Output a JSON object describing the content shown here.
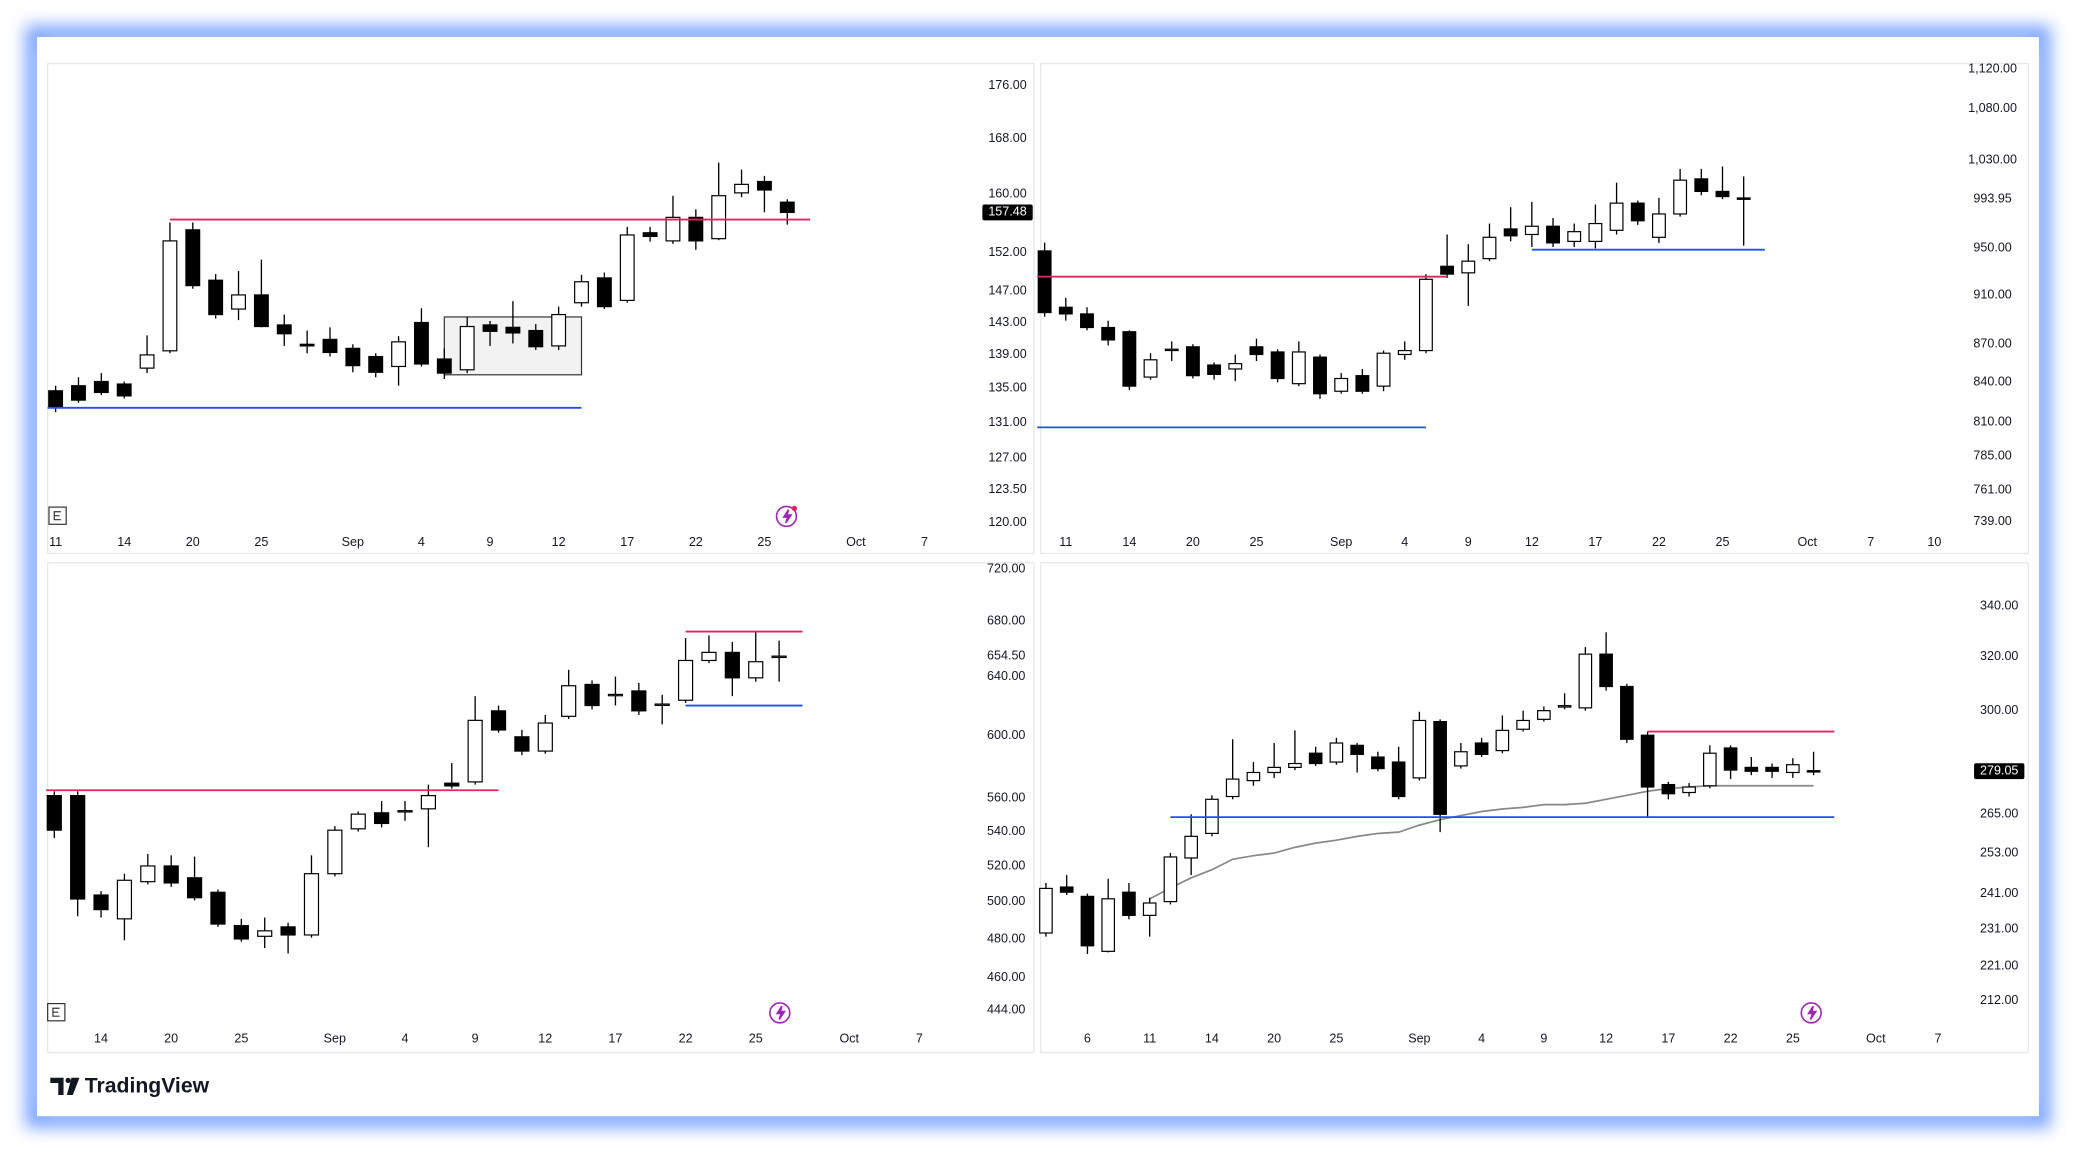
{
  "brand": "TradingView",
  "chart_data": [
    {
      "type": "candlestick",
      "log": true,
      "up_color": "#ffffff",
      "down_color": "#000000",
      "ylim": [
        119,
        179
      ],
      "yticks": [
        {
          "value": 176,
          "label": "176.00"
        },
        {
          "value": 168,
          "label": "168.00"
        },
        {
          "value": 160,
          "label": "160.00"
        },
        {
          "value": 152,
          "label": "152.00"
        },
        {
          "value": 147,
          "label": "147.00"
        },
        {
          "value": 143,
          "label": "143.00"
        },
        {
          "value": 139,
          "label": "139.00"
        },
        {
          "value": 135,
          "label": "135.00"
        },
        {
          "value": 131,
          "label": "131.00"
        },
        {
          "value": 127,
          "label": "127.00"
        },
        {
          "value": 123.5,
          "label": "123.50"
        },
        {
          "value": 120,
          "label": "120.00"
        }
      ],
      "categories": [
        "11",
        null,
        null,
        "14",
        null,
        null,
        "20",
        null,
        null,
        "25",
        null,
        null,
        null,
        "Sep",
        null,
        null,
        "4",
        null,
        null,
        "9",
        null,
        null,
        "12",
        null,
        null,
        "17",
        null,
        null,
        "22",
        null,
        null,
        "25",
        null,
        null,
        null,
        "Oct",
        null,
        null,
        "7"
      ],
      "open": [
        134.7,
        135.3,
        135.8,
        135.5,
        137.4,
        139.5,
        155.1,
        148.4,
        144.7,
        146.5,
        142.7,
        140.3,
        140.9,
        139.8,
        138.8,
        137.6,
        143.0,
        138.5,
        137.2,
        142.7,
        142.4,
        142.0,
        140.1,
        145.5,
        148.7,
        145.8,
        154.7,
        153.6,
        156.8,
        153.9,
        160.2,
        161.8,
        158.9,
        null,
        null,
        null,
        null,
        null,
        null
      ],
      "high": [
        135.3,
        136.3,
        136.8,
        135.8,
        141.4,
        156.1,
        156.1,
        149.2,
        149.6,
        151.1,
        144.0,
        142.0,
        142.4,
        140.3,
        139.2,
        141.3,
        144.8,
        139.8,
        143.7,
        143.2,
        145.7,
        142.8,
        145.0,
        149.1,
        149.4,
        155.5,
        155.5,
        159.8,
        157.9,
        164.5,
        163.5,
        162.6,
        159.3,
        null,
        null,
        null,
        null,
        null,
        null
      ],
      "low": [
        132.2,
        133.3,
        134.2,
        133.8,
        136.8,
        139.2,
        147.3,
        143.5,
        143.3,
        142.4,
        140.1,
        139.2,
        138.8,
        136.9,
        136.3,
        135.3,
        137.6,
        136.1,
        136.8,
        140.1,
        140.4,
        139.6,
        139.6,
        145.0,
        144.7,
        145.5,
        153.5,
        153.2,
        152.4,
        153.7,
        159.6,
        157.5,
        155.8,
        null,
        null,
        null,
        null,
        null,
        null
      ],
      "close": [
        132.8,
        133.6,
        134.5,
        134.1,
        139.0,
        153.6,
        147.7,
        144.0,
        146.5,
        142.5,
        141.6,
        140.1,
        139.3,
        137.7,
        136.9,
        140.6,
        137.9,
        136.8,
        142.5,
        141.9,
        141.7,
        140.0,
        144.0,
        148.2,
        145.0,
        154.4,
        154.2,
        156.8,
        153.6,
        159.8,
        161.4,
        160.6,
        157.48,
        null,
        null,
        null,
        null,
        null,
        null
      ],
      "last_price": {
        "value": 157.48,
        "label": "157.48",
        "badge": true
      },
      "levels": [
        {
          "value": 156.5,
          "color": "#e0245e",
          "from": 5,
          "to": 33
        },
        {
          "value": 132.7,
          "color": "#1e53e5",
          "from": 0,
          "to": 23
        }
      ],
      "box": {
        "from": 17,
        "to": 23,
        "low": 136.6,
        "high": 143.7,
        "color": "#f2f2f2"
      }
    },
    {
      "type": "candlestick",
      "log": true,
      "up_color": "#ffffff",
      "down_color": "#000000",
      "ylim": [
        732,
        1123
      ],
      "yticks": [
        {
          "value": 1120,
          "label": "1,120.00"
        },
        {
          "value": 1080,
          "label": "1,080.00"
        },
        {
          "value": 1030,
          "label": "1,030.00"
        },
        {
          "value": 950,
          "label": "950.00"
        },
        {
          "value": 910,
          "label": "910.00"
        },
        {
          "value": 870,
          "label": "870.00"
        },
        {
          "value": 840,
          "label": "840.00"
        },
        {
          "value": 810,
          "label": "810.00"
        },
        {
          "value": 785,
          "label": "785.00"
        },
        {
          "value": 761,
          "label": "761.00"
        },
        {
          "value": 739,
          "label": "739.00"
        }
      ],
      "categories": [
        null,
        "11",
        null,
        null,
        "14",
        null,
        null,
        "20",
        null,
        null,
        "25",
        null,
        null,
        null,
        "Sep",
        null,
        null,
        "4",
        null,
        null,
        "9",
        null,
        null,
        "12",
        null,
        null,
        "17",
        null,
        null,
        "22",
        null,
        null,
        "25",
        null,
        null,
        null,
        "Oct",
        null,
        null,
        "7",
        null,
        null,
        "10"
      ],
      "open": [
        947.8,
        900,
        894.5,
        883.4,
        880,
        844.1,
        865,
        867.9,
        853.5,
        850.4,
        867.9,
        863.8,
        839,
        859.7,
        833.2,
        845.2,
        837.1,
        861.8,
        864.9,
        934.5,
        928.9,
        941.1,
        967.1,
        962.2,
        969.5,
        956.1,
        956.1,
        965.9,
        990.3,
        959.7,
        980.5,
        1012.6,
        1001,
        995,
        null,
        null,
        null,
        null,
        null,
        null,
        null,
        null,
        null
      ],
      "high": [
        955,
        907.8,
        900,
        889,
        881.1,
        862.8,
        872.2,
        870,
        855.6,
        861.8,
        874.4,
        865.9,
        872.2,
        861.8,
        847.2,
        850.4,
        864.9,
        872.2,
        927.8,
        962.2,
        953.7,
        971.9,
        986.6,
        991.5,
        976.9,
        971.9,
        989.1,
        1009.1,
        992.7,
        995.1,
        1021.9,
        1021.9,
        1024.2,
        1014.9,
        null,
        null,
        null,
        null,
        null,
        null,
        null,
        null,
        null
      ],
      "low": [
        892.2,
        889,
        881.1,
        869,
        834.2,
        842.1,
        856.6,
        843,
        842.1,
        841,
        856.6,
        840,
        837.1,
        827.4,
        831.3,
        831.3,
        833.2,
        857.6,
        862.8,
        924.5,
        901.1,
        938.9,
        956.1,
        951.2,
        951.2,
        951.2,
        950,
        962.2,
        970.7,
        954.8,
        978.1,
        997.5,
        993.95,
        952.4,
        null,
        null,
        null,
        null,
        null,
        null,
        null,
        null,
        null
      ],
      "close": [
        895.6,
        894.5,
        883.4,
        873.4,
        837.1,
        857.6,
        866,
        845.2,
        846.2,
        854.6,
        861.8,
        843,
        863.8,
        831.3,
        843,
        833.2,
        862.8,
        864.9,
        923.4,
        927.8,
        938.9,
        959.7,
        961,
        969.5,
        954.8,
        964.7,
        971.9,
        990.3,
        974.4,
        980.5,
        1011.4,
        1001,
        996.3,
        993.95,
        null,
        null,
        null,
        null,
        null,
        null,
        null,
        null,
        null
      ],
      "last_price": {
        "value": 993.95,
        "label": "993.95",
        "badge": false
      },
      "levels": [
        {
          "value": 925.6,
          "color": "#e0245e",
          "from": 0,
          "to": 19
        },
        {
          "value": 806,
          "color": "#1e53e5",
          "from": 0,
          "to": 18
        },
        {
          "value": 948.9,
          "color": "#1e53e5",
          "from": 23,
          "to": 34
        }
      ]
    },
    {
      "type": "candlestick",
      "log": true,
      "up_color": "#ffffff",
      "down_color": "#000000",
      "ylim": [
        435,
        723
      ],
      "yticks": [
        {
          "value": 720,
          "label": "720.00"
        },
        {
          "value": 680,
          "label": "680.00"
        },
        {
          "value": 640,
          "label": "640.00"
        },
        {
          "value": 600,
          "label": "600.00"
        },
        {
          "value": 560,
          "label": "560.00"
        },
        {
          "value": 540,
          "label": "540.00"
        },
        {
          "value": 520,
          "label": "520.00"
        },
        {
          "value": 500,
          "label": "500.00"
        },
        {
          "value": 480,
          "label": "480.00"
        },
        {
          "value": 460,
          "label": "460.00"
        },
        {
          "value": 444,
          "label": "444.00"
        }
      ],
      "categories": [
        null,
        null,
        "14",
        null,
        null,
        "20",
        null,
        null,
        "25",
        null,
        null,
        null,
        "Sep",
        null,
        null,
        "4",
        null,
        null,
        "9",
        null,
        null,
        "12",
        null,
        null,
        "17",
        null,
        null,
        "22",
        null,
        null,
        "25",
        null,
        null,
        null,
        "Oct",
        null,
        null,
        "7"
      ],
      "open": [
        561.7,
        561.7,
        503.7,
        490.7,
        511.1,
        520,
        513.3,
        505.2,
        487.1,
        481.4,
        486.4,
        482.1,
        515.6,
        541.6,
        551.2,
        552,
        553.6,
        569.4,
        570.2,
        616.4,
        599.1,
        589.8,
        612.7,
        634.5,
        627,
        630,
        620.5,
        623.6,
        651.4,
        657.2,
        639.1,
        654,
        null,
        null,
        null,
        null,
        null,
        null
      ],
      "high": [
        564.3,
        564.3,
        505.9,
        515.6,
        526.9,
        526.1,
        525.4,
        506.7,
        490.7,
        491.4,
        488.6,
        526.1,
        543.2,
        552,
        558.4,
        558.4,
        568.5,
        582.1,
        626.4,
        620,
        603.6,
        613.6,
        644.8,
        637.3,
        640,
        635.5,
        627.3,
        667.6,
        669.5,
        664.8,
        672.4,
        665.7,
        null,
        null,
        null,
        null,
        null,
        null
      ],
      "low": [
        536.2,
        492.1,
        491.4,
        479.3,
        509.6,
        508.2,
        500.7,
        486.4,
        478.6,
        475.2,
        472.4,
        480.7,
        514.1,
        540,
        542.4,
        546.4,
        530.8,
        566,
        568.5,
        601.8,
        587.2,
        588.1,
        610.9,
        617.3,
        620,
        613.6,
        607.3,
        621.8,
        649.5,
        626.4,
        636.4,
        636.4,
        null,
        null,
        null,
        null,
        null,
        null
      ],
      "close": [
        540.8,
        501.5,
        495.7,
        511.9,
        520,
        510.4,
        502.2,
        487.9,
        480,
        484.3,
        482.1,
        515.6,
        540.8,
        550.4,
        544.8,
        552.5,
        561.7,
        567.7,
        610,
        603.6,
        589.8,
        608.2,
        633.6,
        620,
        627.6,
        616.4,
        621,
        651.4,
        657.2,
        639.1,
        650.5,
        654.5,
        null,
        null,
        null,
        null,
        null,
        null
      ],
      "last_price": {
        "value": 654.5,
        "label": "654.50",
        "badge": false
      },
      "levels": [
        {
          "value": 565,
          "color": "#e0245e",
          "from": 0,
          "to": 19
        },
        {
          "value": 672.4,
          "color": "#e0245e",
          "from": 27,
          "to": 32
        },
        {
          "value": 620,
          "color": "#1e53e5",
          "from": 27,
          "to": 32
        }
      ]
    },
    {
      "type": "candlestick",
      "log": true,
      "up_color": "#ffffff",
      "down_color": "#000000",
      "ylim": [
        205,
        357
      ],
      "yticks": [
        {
          "value": 340,
          "label": "340.00"
        },
        {
          "value": 320,
          "label": "320.00"
        },
        {
          "value": 300,
          "label": "300.00"
        },
        {
          "value": 265,
          "label": "265.00"
        },
        {
          "value": 253,
          "label": "253.00"
        },
        {
          "value": 241,
          "label": "241.00"
        },
        {
          "value": 231,
          "label": "231.00"
        },
        {
          "value": 221,
          "label": "221.00"
        },
        {
          "value": 212,
          "label": "212.00"
        }
      ],
      "categories": [
        null,
        null,
        "6",
        null,
        null,
        "11",
        null,
        null,
        "14",
        null,
        null,
        "20",
        null,
        null,
        "25",
        null,
        null,
        null,
        "Sep",
        null,
        null,
        "4",
        null,
        null,
        "9",
        null,
        null,
        "12",
        null,
        null,
        "17",
        null,
        null,
        "22",
        null,
        null,
        "25",
        null,
        null,
        null,
        "Oct",
        null,
        null,
        "7"
      ],
      "open": [
        229.9,
        242.9,
        240.2,
        224.9,
        241.4,
        234.8,
        238.7,
        251.5,
        259,
        270.7,
        275.9,
        278.6,
        280.3,
        285.1,
        282.1,
        287.8,
        283.8,
        282.1,
        276.8,
        296.1,
        280.8,
        288.6,
        286,
        293.4,
        296.9,
        301.3,
        301,
        321,
        308.8,
        291.3,
        274.6,
        272,
        274.2,
        286.9,
        280.3,
        280.3,
        278.6,
        279.2,
        null,
        null,
        null,
        null,
        null,
        null
      ],
      "high": [
        244.1,
        246.4,
        241,
        245.3,
        244.1,
        239.8,
        253,
        265,
        271.1,
        289.9,
        282.1,
        288.6,
        293,
        287.3,
        290.4,
        288.6,
        285.6,
        287.3,
        299.6,
        296.9,
        288.6,
        290.4,
        298.3,
        300,
        301.5,
        306.3,
        323.7,
        329.5,
        309.8,
        292.6,
        275.5,
        275.1,
        287.8,
        287.8,
        283.8,
        281.6,
        283.4,
        285.6,
        null,
        null,
        null,
        null,
        null,
        null
      ],
      "low": [
        228.9,
        240.6,
        224.2,
        224.6,
        233.7,
        228.9,
        237.9,
        246.4,
        258.1,
        269.8,
        274.2,
        276.8,
        279.4,
        280.8,
        281.2,
        278.6,
        279,
        269.8,
        275.9,
        259.4,
        279.9,
        283.8,
        285.1,
        292.6,
        296.1,
        300.5,
        300,
        307.3,
        288.6,
        264.1,
        269.8,
        270.7,
        273.4,
        276.4,
        277.7,
        276.8,
        276.8,
        277.7,
        null,
        null,
        null,
        null,
        null,
        null
      ],
      "close": [
        242.5,
        241.4,
        226.4,
        239.5,
        234.8,
        238.3,
        251.8,
        258.1,
        269.8,
        276.4,
        278.6,
        280.3,
        281.6,
        281.6,
        288.6,
        284.7,
        279.9,
        270.7,
        296.5,
        265,
        285.6,
        284.7,
        293,
        296.5,
        300,
        301.8,
        321,
        308.8,
        289.9,
        273.8,
        271.6,
        273.8,
        285.1,
        279.4,
        279,
        279,
        281.2,
        279.05,
        null,
        null,
        null,
        null,
        null,
        null
      ],
      "last_price": {
        "value": 279.05,
        "label": "279.05",
        "badge": true
      },
      "levels": [
        {
          "value": 292.6,
          "color": "#e0245e",
          "from": 29,
          "to": 38
        },
        {
          "value": 264.1,
          "color": "#1e53e5",
          "from": 6,
          "to": 38
        }
      ],
      "ma": {
        "color": "#888888",
        "values": [
          null,
          null,
          null,
          null,
          null,
          239.5,
          242.6,
          245.6,
          248,
          251.1,
          252.2,
          253,
          254.7,
          256,
          256.9,
          258.1,
          259,
          259.4,
          261.6,
          263.3,
          264.6,
          265.9,
          266.7,
          267.2,
          268.1,
          268.1,
          268.5,
          269.8,
          271.1,
          272.4,
          273.3,
          273.8,
          274.2,
          274.2,
          274.2,
          274.2,
          274.2,
          274.2,
          null,
          null,
          null,
          null,
          null,
          null
        ]
      }
    }
  ]
}
